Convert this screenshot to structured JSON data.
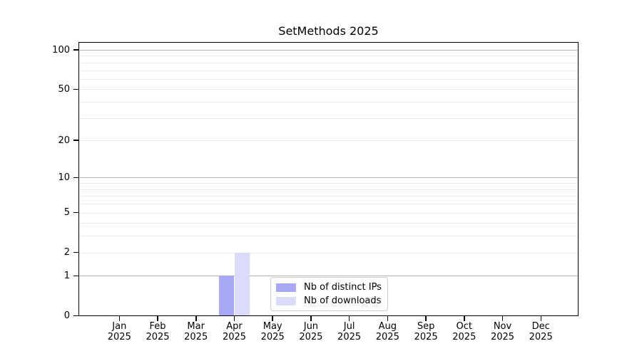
{
  "chart_data": {
    "type": "bar",
    "title": "SetMethods 2025",
    "categories": [
      {
        "month": "Jan",
        "year": "2025"
      },
      {
        "month": "Feb",
        "year": "2025"
      },
      {
        "month": "Mar",
        "year": "2025"
      },
      {
        "month": "Apr",
        "year": "2025"
      },
      {
        "month": "May",
        "year": "2025"
      },
      {
        "month": "Jun",
        "year": "2025"
      },
      {
        "month": "Jul",
        "year": "2025"
      },
      {
        "month": "Aug",
        "year": "2025"
      },
      {
        "month": "Sep",
        "year": "2025"
      },
      {
        "month": "Oct",
        "year": "2025"
      },
      {
        "month": "Nov",
        "year": "2025"
      },
      {
        "month": "Dec",
        "year": "2025"
      }
    ],
    "series": [
      {
        "name": "Nb of distinct IPs",
        "color": "#a8a8f7",
        "values": [
          0,
          0,
          0,
          1,
          0,
          0,
          0,
          0,
          0,
          0,
          0,
          0
        ]
      },
      {
        "name": "Nb of downloads",
        "color": "#dbdbfa",
        "values": [
          0,
          0,
          0,
          2,
          0,
          0,
          0,
          0,
          0,
          0,
          0,
          0
        ]
      }
    ],
    "y_axis": {
      "scale": "log1p",
      "ticks": [
        0,
        1,
        2,
        5,
        10,
        20,
        50,
        100
      ],
      "ylim": [
        0,
        115
      ]
    },
    "gridlines": {
      "orientation": "horizontal",
      "major": [
        1,
        10,
        100
      ],
      "minor": [
        2,
        3,
        4,
        5,
        6,
        7,
        8,
        9,
        20,
        30,
        40,
        50,
        60,
        70,
        80,
        90
      ],
      "major_color": "#b3b3b3",
      "minor_color": "#ebebeb"
    },
    "legend": {
      "position": "inside lower center",
      "entries": [
        "Nb of distinct IPs",
        "Nb of downloads"
      ]
    },
    "background_color": "#ffffff",
    "text_color": "#000000"
  }
}
